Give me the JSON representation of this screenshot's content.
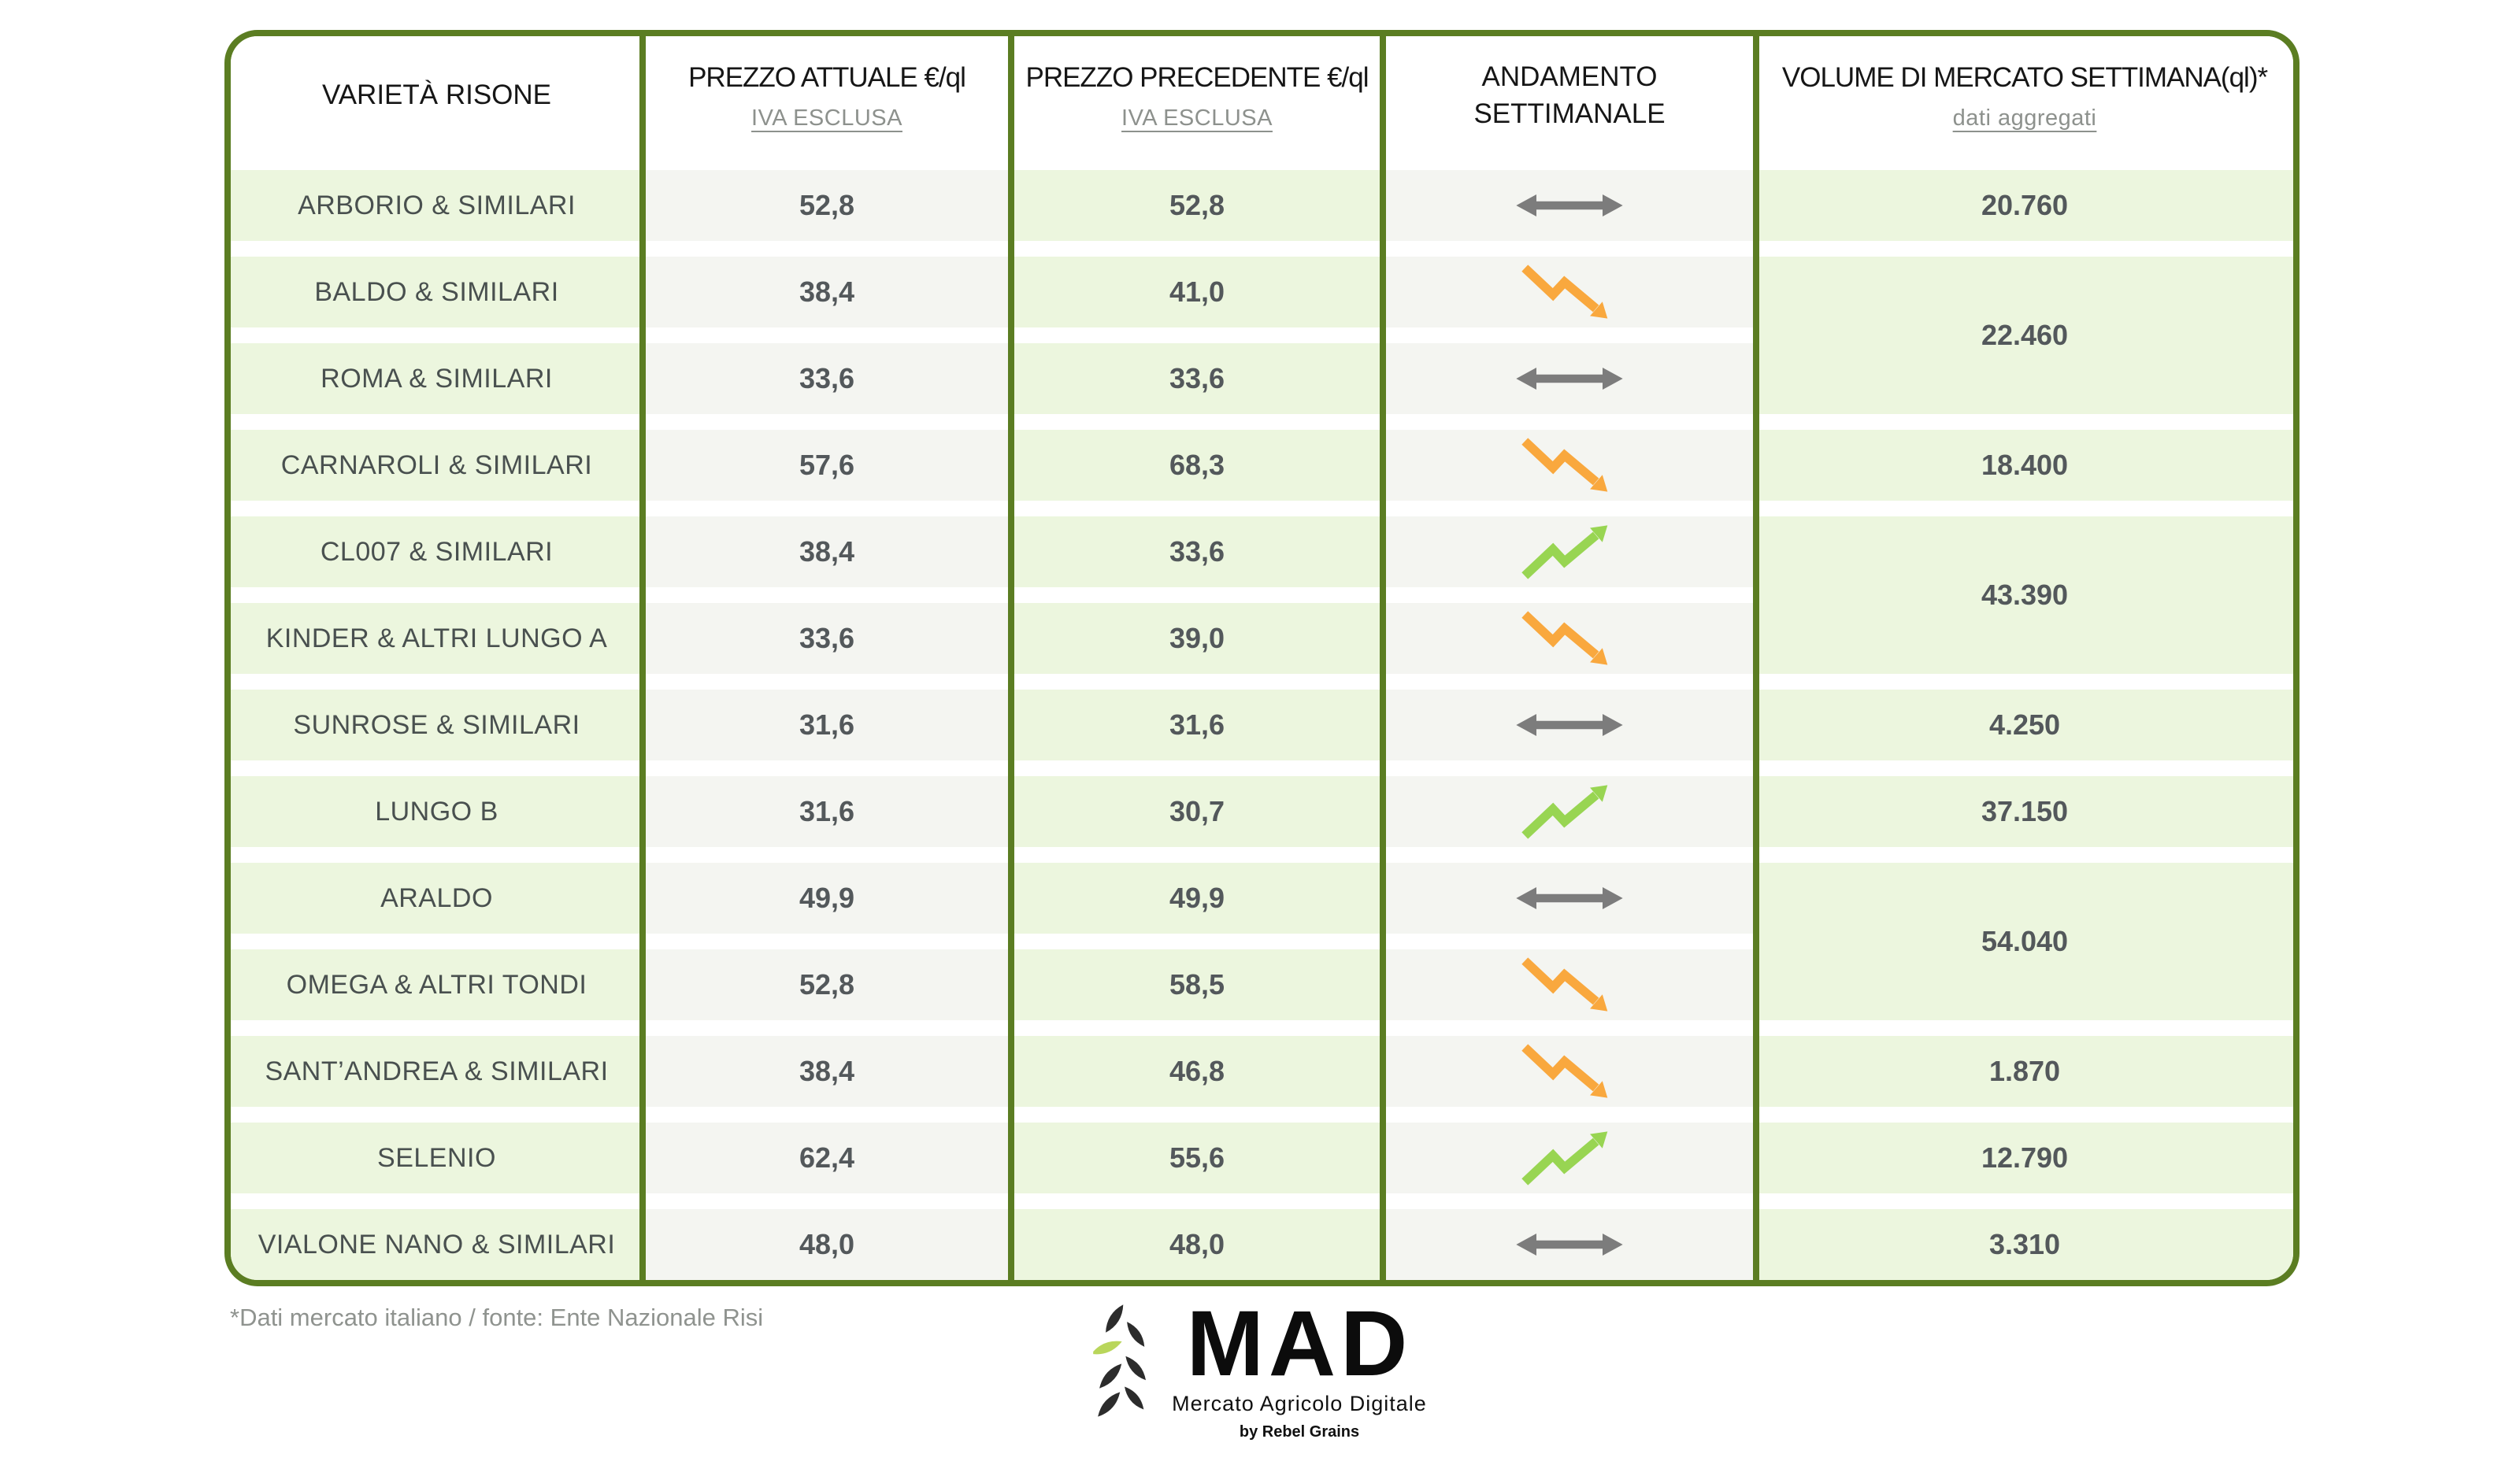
{
  "page": {
    "background": "#ffffff"
  },
  "table": {
    "headers": {
      "variety": "VARIETÀ RISONE",
      "current_price": "PREZZO ATTUALE €/ql",
      "current_price_sub": "IVA ESCLUSA",
      "previous_price": "PREZZO PRECEDENTE €/ql",
      "previous_price_sub": "IVA ESCLUSA",
      "trend": "ANDAMENTO SETTIMANALE",
      "volume": "VOLUME DI MERCATO SETTIMANA(ql)*",
      "volume_sub": "dati aggregati"
    },
    "rows": [
      {
        "variety": "ARBORIO & SIMILARI",
        "current": "52,8",
        "previous": "52,8",
        "trend": "stable",
        "volume": "20.760",
        "volume_span": 1
      },
      {
        "variety": "BALDO & SIMILARI",
        "current": "38,4",
        "previous": "41,0",
        "trend": "down",
        "volume": "22.460",
        "volume_span": 2
      },
      {
        "variety": "ROMA & SIMILARI",
        "current": "33,6",
        "previous": "33,6",
        "trend": "stable",
        "volume": null
      },
      {
        "variety": "CARNAROLI & SIMILARI",
        "current": "57,6",
        "previous": "68,3",
        "trend": "down",
        "volume": "18.400",
        "volume_span": 1
      },
      {
        "variety": "CL007 & SIMILARI",
        "current": "38,4",
        "previous": "33,6",
        "trend": "up",
        "volume": "43.390",
        "volume_span": 2
      },
      {
        "variety": "KINDER & ALTRI LUNGO A",
        "current": "33,6",
        "previous": "39,0",
        "trend": "down",
        "volume": null
      },
      {
        "variety": "SUNROSE & SIMILARI",
        "current": "31,6",
        "previous": "31,6",
        "trend": "stable",
        "volume": "4.250",
        "volume_span": 1
      },
      {
        "variety": "LUNGO B",
        "current": "31,6",
        "previous": "30,7",
        "trend": "up",
        "volume": "37.150",
        "volume_span": 1
      },
      {
        "variety": "ARALDO",
        "current": "49,9",
        "previous": "49,9",
        "trend": "stable",
        "volume": "54.040",
        "volume_span": 2
      },
      {
        "variety": "OMEGA & ALTRI TONDI",
        "current": "52,8",
        "previous": "58,5",
        "trend": "down",
        "volume": null
      },
      {
        "variety": "SANT’ANDREA & SIMILARI",
        "current": "38,4",
        "previous": "46,8",
        "trend": "down",
        "volume": "1.870",
        "volume_span": 1
      },
      {
        "variety": "SELENIO",
        "current": "62,4",
        "previous": "55,6",
        "trend": "up",
        "volume": "12.790",
        "volume_span": 1
      },
      {
        "variety": "VIALONE NANO & SIMILARI",
        "current": "48,0",
        "previous": "48,0",
        "trend": "stable",
        "volume": "3.310",
        "volume_span": 1
      }
    ]
  },
  "icons": {
    "trend_stable": "horizontal-double-arrow",
    "trend_down": "zigzag-arrow-down",
    "trend_up": "zigzag-arrow-up",
    "logo": "wheat-leaves"
  },
  "colors": {
    "frame_green": "#5b7d22",
    "cell_green": "#ecf6de",
    "cell_gray": "#f4f5f1",
    "arrow_gray": "#7c7c7c",
    "arrow_orange": "#f9a83e",
    "arrow_green": "#98d552",
    "text_dark": "#53585b",
    "text_muted": "#8d918d",
    "logo_leaf_green": "#b9d65b"
  },
  "footer": {
    "note": "*Dati mercato italiano / fonte: Ente Nazionale Risi"
  },
  "logo": {
    "name": "MAD",
    "subtitle": "Mercato Agricolo Digitale",
    "byline": "by Rebel Grains"
  },
  "chart_data": {
    "type": "table",
    "title": "Prezzi risone - mercato italiano",
    "columns": [
      "VARIETÀ RISONE",
      "PREZZO ATTUALE €/ql (IVA ESCLUSA)",
      "PREZZO PRECEDENTE €/ql (IVA ESCLUSA)",
      "ANDAMENTO SETTIMANALE",
      "VOLUME DI MERCATO SETTIMANA (ql) - dati aggregati"
    ],
    "rows": [
      [
        "ARBORIO & SIMILARI",
        52.8,
        52.8,
        "stable",
        20760
      ],
      [
        "BALDO & SIMILARI",
        38.4,
        41.0,
        "down",
        22460
      ],
      [
        "ROMA & SIMILARI",
        33.6,
        33.6,
        "stable",
        22460
      ],
      [
        "CARNAROLI & SIMILARI",
        57.6,
        68.3,
        "down",
        18400
      ],
      [
        "CL007 & SIMILARI",
        38.4,
        33.6,
        "up",
        43390
      ],
      [
        "KINDER & ALTRI LUNGO A",
        33.6,
        39.0,
        "down",
        43390
      ],
      [
        "SUNROSE & SIMILARI",
        31.6,
        31.6,
        "stable",
        4250
      ],
      [
        "LUNGO B",
        31.6,
        30.7,
        "up",
        37150
      ],
      [
        "ARALDO",
        49.9,
        49.9,
        "stable",
        54040
      ],
      [
        "OMEGA & ALTRI TONDI",
        52.8,
        58.5,
        "down",
        54040
      ],
      [
        "SANT’ANDREA & SIMILARI",
        38.4,
        46.8,
        "down",
        1870
      ],
      [
        "SELENIO",
        62.4,
        55.6,
        "up",
        12790
      ],
      [
        "VIALONE NANO & SIMILARI",
        48.0,
        48.0,
        "stable",
        3310
      ]
    ],
    "merged_volume_groups": [
      {
        "varieties": [
          "BALDO & SIMILARI",
          "ROMA & SIMILARI"
        ],
        "volume": 22460
      },
      {
        "varieties": [
          "CL007 & SIMILARI",
          "KINDER & ALTRI LUNGO A"
        ],
        "volume": 43390
      },
      {
        "varieties": [
          "ARALDO",
          "OMEGA & ALTRI TONDI"
        ],
        "volume": 54040
      }
    ],
    "source_note": "*Dati mercato italiano / fonte: Ente Nazionale Risi"
  }
}
